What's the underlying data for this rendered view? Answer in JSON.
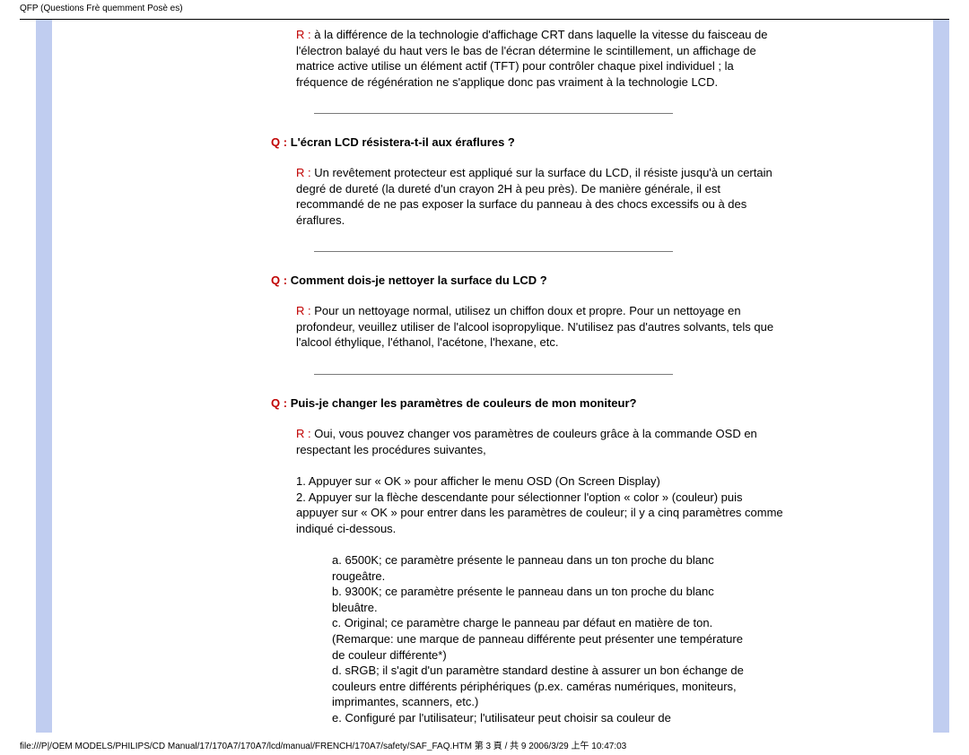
{
  "header": {
    "title": "QFP (Questions Frè quemment Posè es)"
  },
  "colors": {
    "stripe": "#c0cdf0",
    "q_color": "#c00000",
    "r_color": "#c00000",
    "text": "#000000",
    "separator": "#7a7a7a"
  },
  "qa": {
    "intro_answer": {
      "r": "R :",
      "text": "à la différence de la technologie d'affichage CRT dans laquelle la vitesse du faisceau de l'électron balayé du haut vers le bas de l'écran détermine le scintillement, un affichage de matrice active utilise un élément actif (TFT) pour contrôler chaque pixel individuel ; la fréquence de régénération ne s'applique donc pas vraiment à la technologie LCD."
    },
    "q1": {
      "q_label": "Q :",
      "q_text": "L'écran LCD résistera-t-il aux éraflures ?",
      "r_label": "R :",
      "r_text": "Un revêtement protecteur est appliqué sur la surface du LCD, il résiste jusqu'à un certain degré de dureté (la dureté d'un crayon 2H à peu près). De manière générale, il est recommandé de ne pas exposer la surface du panneau à des chocs excessifs ou à des éraflures."
    },
    "q2": {
      "q_label": "Q :",
      "q_text": "Comment dois-je nettoyer la surface du LCD ?",
      "r_label": "R :",
      "r_text": "Pour un nettoyage normal, utilisez un chiffon doux et propre. Pour un nettoyage en profondeur, veuillez utiliser de l'alcool isopropylique. N'utilisez pas d'autres solvants, tels que l'alcool éthylique, l'éthanol, l'acétone, l'hexane, etc."
    },
    "q3": {
      "q_label": "Q :",
      "q_text": "Puis-je changer les paramètres de couleurs de mon moniteur?",
      "r_label": "R :",
      "r_text": "Oui, vous pouvez changer vos paramètres de couleurs grâce à la commande OSD en respectant les procédures suivantes,",
      "step1": "1. Appuyer sur « OK » pour afficher le menu OSD (On Screen Display)",
      "step2": "2. Appuyer sur la flèche descendante pour sélectionner l'option « color » (couleur) puis appuyer sur « OK » pour entrer dans les paramètres de couleur; il y a cinq paramètres comme indiqué ci-dessous.",
      "sub_a": "a. 6500K; ce paramètre présente le panneau dans un ton proche du blanc rougeâtre.",
      "sub_b": "b. 9300K; ce paramètre présente le panneau dans un ton proche du blanc bleuâtre.",
      "sub_c": "c. Original; ce paramètre charge le panneau par défaut en matière de ton. (Remarque: une marque de panneau différente peut présenter une température de couleur différente*)",
      "sub_d": "d. sRGB; il s'agit d'un paramètre standard destine à assurer un bon échange de couleurs entre différents périphériques (p.ex. caméras numériques, moniteurs, imprimantes, scanners, etc.)",
      "sub_e": "e. Configuré par l'utilisateur; l'utilisateur peut choisir sa couleur de"
    }
  },
  "footer": {
    "text": "file:///P|/OEM MODELS/PHILIPS/CD Manual/17/170A7/170A7/lcd/manual/FRENCH/170A7/safety/SAF_FAQ.HTM 第 3 頁 / 共 9 2006/3/29 上午 10:47:03"
  }
}
